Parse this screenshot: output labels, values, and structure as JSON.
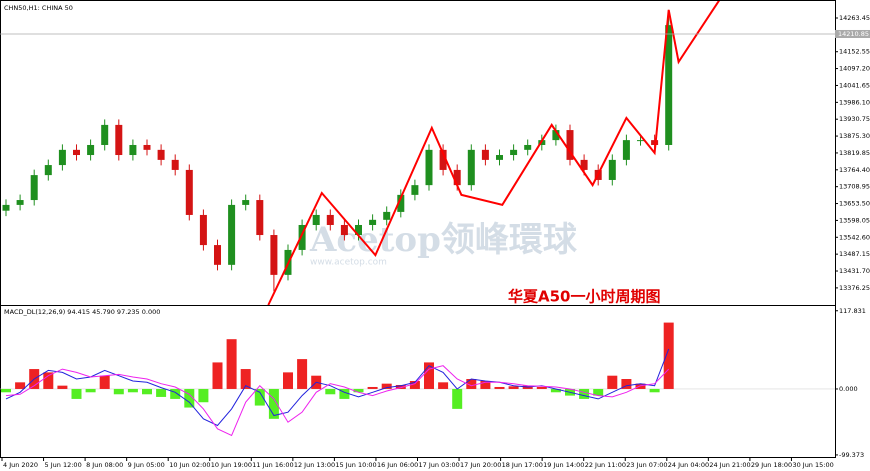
{
  "chart_data": [
    {
      "type": "candlestick",
      "title": "CHN50,H1:  CHINA 50",
      "open": [
        13630,
        13649,
        13665,
        13747,
        13780,
        13830,
        13813,
        13846,
        13912,
        13813,
        13846,
        13830,
        13797,
        13764,
        13616,
        13517,
        13452,
        13649,
        13665,
        13550,
        13419,
        13501,
        13583,
        13616,
        13583,
        13550,
        13583,
        13600,
        13626,
        13682,
        13714,
        13830,
        13764,
        13714,
        13830,
        13797,
        13813,
        13830,
        13846,
        13862,
        13895,
        13797,
        13764,
        13731,
        13797,
        13862,
        13862,
        13846
      ],
      "high": [
        13667,
        13683,
        13765,
        13798,
        13848,
        13848,
        13864,
        13930,
        13930,
        13864,
        13864,
        13848,
        13815,
        13782,
        13634,
        13535,
        13667,
        13683,
        13683,
        13568,
        13519,
        13601,
        13634,
        13634,
        13601,
        13601,
        13618,
        13644,
        13700,
        13732,
        13848,
        13848,
        13782,
        13848,
        13848,
        13831,
        13848,
        13864,
        13880,
        13913,
        13913,
        13815,
        13782,
        13815,
        13880,
        13880,
        13880,
        14290
      ],
      "low": [
        13612,
        13631,
        13647,
        13729,
        13762,
        13795,
        13795,
        13828,
        13795,
        13795,
        13812,
        13779,
        13746,
        13598,
        13499,
        13434,
        13434,
        13631,
        13532,
        13365,
        13401,
        13483,
        13565,
        13565,
        13532,
        13532,
        13565,
        13582,
        13608,
        13664,
        13696,
        13746,
        13696,
        13696,
        13779,
        13779,
        13795,
        13812,
        13828,
        13844,
        13779,
        13746,
        13713,
        13713,
        13779,
        13844,
        13828,
        13828
      ],
      "close": [
        13649,
        13665,
        13747,
        13780,
        13830,
        13813,
        13846,
        13912,
        13813,
        13846,
        13830,
        13797,
        13764,
        13616,
        13517,
        13452,
        13649,
        13665,
        13550,
        13419,
        13501,
        13583,
        13616,
        13583,
        13550,
        13583,
        13600,
        13626,
        13682,
        13714,
        13830,
        13764,
        13714,
        13830,
        13797,
        13813,
        13830,
        13846,
        13862,
        13895,
        13797,
        13764,
        13731,
        13797,
        13862,
        13862,
        13846,
        14240
      ],
      "up_color": "#1f8f1f",
      "down_color": "#d41414",
      "ylim": [
        13320,
        14316
      ],
      "yticks": [
        14263.45,
        14152.55,
        {
          "value": 14097.2,
          "label": "14097.20"
        },
        14041.65,
        {
          "value": 13986.1,
          "label": "13986.10"
        },
        13930.75,
        {
          "value": 13875.3,
          "label": "13875.30"
        },
        13819.85,
        {
          "value": 13764.4,
          "label": "13764.40"
        },
        13708.95,
        {
          "value": 13653.5,
          "label": "13653.50"
        },
        13598.05,
        {
          "value": 13542.6,
          "label": "13542.60"
        },
        13487.15,
        {
          "value": 13431.7,
          "label": "13431.70"
        },
        13376.25
      ],
      "last_price": 14210.85,
      "zigzag": {
        "color": "#ff0000",
        "x": [
          18.6,
          22.4,
          26.2,
          30.2,
          32.3,
          35.2,
          38.7,
          41.6,
          44.0,
          46.0,
          47.0,
          47.7,
          50.6
        ],
        "values": [
          13320,
          13688,
          13484,
          13902,
          13682,
          13649,
          13912,
          13714,
          13935,
          13820,
          14290,
          14119,
          14323
        ]
      },
      "annotation": "华夏A50一小时周期图",
      "watermark": "Acetop领峰環球",
      "watermark_url": "www.acetop.com",
      "categories": [
        "4 Jun 2020",
        "5 Jun 12:00",
        "8 Jun 08:00",
        "9 Jun 05:00",
        "10 Jun 02:00",
        "10 Jun 19:00",
        "11 Jun 16:00",
        "12 Jun 13:00",
        "15 Jun 10:00",
        "16 Jun 06:00",
        "17 Jun 03:00",
        "17 Jun 20:00",
        "18 Jun 17:00",
        "19 Jun 14:00",
        "22 Jun 11:00",
        "23 Jun 07:00",
        "24 Jun 04:00",
        "24 Jun 21:00",
        "29 Jun 18:00",
        "30 Jun 15:00"
      ]
    },
    {
      "type": "macd",
      "title": "MACD_DL(12,26,9) 94.415 45.790 97.235 0.000",
      "values": [
        -5,
        10,
        30,
        25,
        5,
        -15,
        -5,
        20,
        -8,
        -5,
        -8,
        -12,
        -15,
        -28,
        -20,
        40,
        75,
        30,
        -25,
        -45,
        25,
        45,
        20,
        -8,
        -15,
        -5,
        3,
        8,
        6,
        12,
        40,
        10,
        -30,
        15,
        12,
        3,
        4,
        5,
        3,
        -5,
        -10,
        -15,
        -10,
        20,
        15,
        8,
        -5,
        100
      ],
      "pos_color": "#ee2222",
      "neg_color": "#55ee22",
      "series": [
        {
          "color": "#2222dd",
          "values": [
            -15,
            -5,
            15,
            28,
            25,
            15,
            18,
            28,
            20,
            12,
            10,
            2,
            -5,
            -20,
            -45,
            -55,
            -30,
            5,
            -5,
            -40,
            -35,
            -10,
            10,
            5,
            -5,
            -12,
            -5,
            2,
            5,
            10,
            35,
            25,
            0,
            15,
            12,
            10,
            5,
            3,
            5,
            0,
            -5,
            -10,
            -15,
            -5,
            5,
            8,
            5,
            60
          ]
        },
        {
          "color": "#ee22ee",
          "values": [
            -10,
            -8,
            5,
            20,
            30,
            25,
            18,
            20,
            22,
            18,
            15,
            8,
            3,
            -8,
            -30,
            -60,
            -70,
            -20,
            5,
            -15,
            -50,
            -35,
            -5,
            8,
            3,
            -5,
            -10,
            -3,
            2,
            8,
            30,
            35,
            15,
            5,
            10,
            10,
            8,
            5,
            4,
            3,
            0,
            -5,
            -10,
            -12,
            -5,
            5,
            8,
            30
          ]
        }
      ],
      "ylim": [
        -104,
        125
      ],
      "yticks": [
        117.831,
        {
          "value": 0,
          "label": "0.000"
        },
        -99.373
      ]
    }
  ]
}
